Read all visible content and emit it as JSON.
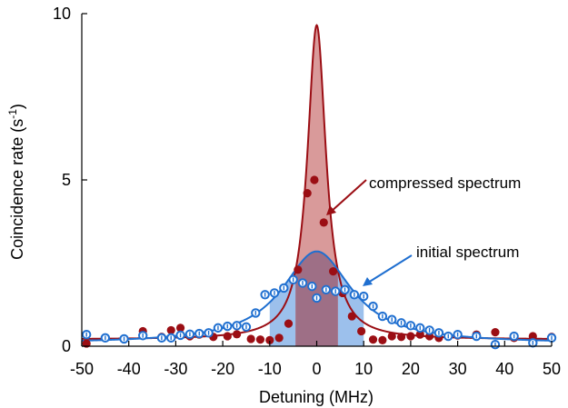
{
  "chart_data": {
    "type": "scatter",
    "xlabel": "Detuning (MHz)",
    "ylabel_main": "Coincidence rate (s",
    "ylabel_sup": "-1",
    "ylabel_close": ")",
    "xlim": [
      -50,
      50
    ],
    "ylim": [
      0,
      10
    ],
    "xticks": [
      -50,
      -40,
      -30,
      -20,
      -10,
      0,
      10,
      20,
      30,
      40,
      50
    ],
    "yticks": [
      0,
      5,
      10
    ],
    "colors": {
      "compressed": "#9b0e14",
      "compressed_fill": "#d99a9a",
      "initial": "#1f6fd0",
      "initial_fill": "#9cc0ec",
      "overlap_fill": "#9e6f86"
    },
    "annotations": [
      {
        "text": "compressed spectrum",
        "series": "compressed"
      },
      {
        "text": "initial spectrum",
        "series": "initial"
      }
    ],
    "shaded_regions": [
      {
        "series": "initial",
        "x": [
          -10,
          10
        ]
      },
      {
        "series": "compressed",
        "x": [
          -4.5,
          4.5
        ]
      }
    ],
    "series": [
      {
        "key": "compressed",
        "marker": "filled-circle",
        "points": [
          [
            -49,
            0.08
          ],
          [
            -45,
            0.25
          ],
          [
            -41,
            0.22
          ],
          [
            -37,
            0.45
          ],
          [
            -33,
            0.28
          ],
          [
            -31,
            0.48
          ],
          [
            -29,
            0.55
          ],
          [
            -27,
            0.3
          ],
          [
            -25,
            0.35
          ],
          [
            -22,
            0.28
          ],
          [
            -19,
            0.3
          ],
          [
            -17,
            0.36
          ],
          [
            -14,
            0.22
          ],
          [
            -12,
            0.2
          ],
          [
            -10,
            0.18
          ],
          [
            -8,
            0.25
          ],
          [
            -6,
            0.68
          ],
          [
            -4,
            2.3
          ],
          [
            -2,
            4.6
          ],
          [
            -0.5,
            5.0
          ],
          [
            1.5,
            3.72
          ],
          [
            3.5,
            2.25
          ],
          [
            5.5,
            1.6
          ],
          [
            7.5,
            0.9
          ],
          [
            9.5,
            0.45
          ],
          [
            12,
            0.2
          ],
          [
            14,
            0.18
          ],
          [
            16,
            0.3
          ],
          [
            18,
            0.28
          ],
          [
            20,
            0.3
          ],
          [
            22,
            0.35
          ],
          [
            24,
            0.3
          ],
          [
            26,
            0.25
          ],
          [
            28,
            0.3
          ],
          [
            30,
            0.32
          ],
          [
            34,
            0.35
          ],
          [
            38,
            0.42
          ],
          [
            42,
            0.25
          ],
          [
            46,
            0.3
          ],
          [
            50,
            0.28
          ]
        ]
      },
      {
        "key": "initial",
        "marker": "open-circle",
        "points": [
          [
            -49,
            0.35
          ],
          [
            -45,
            0.25
          ],
          [
            -41,
            0.22
          ],
          [
            -37,
            0.32
          ],
          [
            -33,
            0.25
          ],
          [
            -31,
            0.25
          ],
          [
            -29,
            0.33
          ],
          [
            -27,
            0.36
          ],
          [
            -25,
            0.38
          ],
          [
            -23,
            0.4
          ],
          [
            -21,
            0.55
          ],
          [
            -19,
            0.6
          ],
          [
            -17,
            0.62
          ],
          [
            -15,
            0.58
          ],
          [
            -13,
            1.0
          ],
          [
            -11,
            1.55
          ],
          [
            -9,
            1.6
          ],
          [
            -7,
            1.75
          ],
          [
            -5,
            2.0
          ],
          [
            -3,
            1.9
          ],
          [
            -1,
            1.8
          ],
          [
            0,
            1.45
          ],
          [
            2,
            1.7
          ],
          [
            4,
            1.65
          ],
          [
            6,
            1.7
          ],
          [
            8,
            1.55
          ],
          [
            10,
            1.5
          ],
          [
            12,
            1.2
          ],
          [
            14,
            0.9
          ],
          [
            16,
            0.8
          ],
          [
            18,
            0.7
          ],
          [
            20,
            0.62
          ],
          [
            22,
            0.55
          ],
          [
            24,
            0.48
          ],
          [
            26,
            0.4
          ],
          [
            28,
            0.3
          ],
          [
            30,
            0.35
          ],
          [
            34,
            0.3
          ],
          [
            38,
            0.05
          ],
          [
            42,
            0.3
          ],
          [
            46,
            0.1
          ],
          [
            50,
            0.25
          ]
        ]
      }
    ],
    "fits": [
      {
        "key": "compressed",
        "shape": "lorentzian-like",
        "peak_x": 0,
        "peak_y": 9.65,
        "half_width": 2.4,
        "baseline": 0.2
      },
      {
        "key": "initial",
        "shape": "lorentzian",
        "peak_x": 0,
        "peak_y": 2.85,
        "half_width": 9.0,
        "baseline": 0.08
      }
    ]
  }
}
